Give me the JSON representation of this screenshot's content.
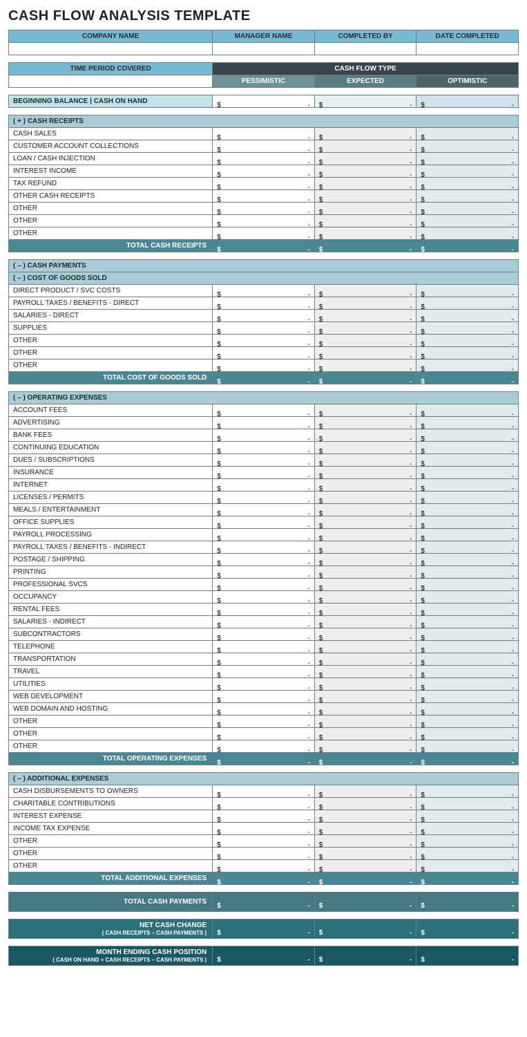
{
  "title": "CASH FLOW ANALYSIS TEMPLATE",
  "colors": {
    "hdr_blue": "#79b9cf",
    "hdr_dark": "#38444c",
    "sub_pess": "#6c9197",
    "sub_exp": "#5b7c82",
    "sub_opt": "#4a666c",
    "sec_hdr": "#a9ccd5",
    "total": "#4b8793",
    "grand1": "#457a83",
    "grand2": "#2e707a",
    "grand3": "#1a5664",
    "c2": "#efefef",
    "c3": "#e2ebee",
    "border": "#6d7e88"
  },
  "top_headers": [
    "COMPANY NAME",
    "MANAGER NAME",
    "COMPLETED BY",
    "DATE COMPLETED"
  ],
  "top_values": [
    "",
    "",
    "",
    ""
  ],
  "time_period_label": "TIME PERIOD COVERED",
  "time_period_value": "",
  "cash_flow_type_label": "CASH FLOW TYPE",
  "scenarios": [
    "PESSIMISTIC",
    "EXPECTED",
    "OPTIMISTIC"
  ],
  "beginning_balance_label": "BEGINNING BALANCE | CASH ON HAND",
  "currency_symbol": "$",
  "dash": "-",
  "sections": [
    {
      "header": "( + )  CASH RECEIPTS",
      "rows": [
        "CASH SALES",
        "CUSTOMER ACCOUNT COLLECTIONS",
        "LOAN / CASH INJECTION",
        "INTEREST INCOME",
        "TAX REFUND",
        "OTHER CASH RECEIPTS",
        "OTHER",
        "OTHER",
        "OTHER"
      ],
      "total_label": "TOTAL CASH RECEIPTS"
    },
    {
      "header": "( – )  CASH PAYMENTS",
      "subheader": "( – )  COST OF GOODS SOLD",
      "rows": [
        "DIRECT PRODUCT / SVC COSTS",
        "PAYROLL TAXES / BENEFITS - DIRECT",
        "SALARIES - DIRECT",
        "SUPPLIES",
        "OTHER",
        "OTHER",
        "OTHER"
      ],
      "total_label": "TOTAL COST OF GOODS SOLD"
    },
    {
      "header": "( – )  OPERATING EXPENSES",
      "rows": [
        "ACCOUNT FEES",
        "ADVERTISING",
        "BANK FEES",
        "CONTINUING EDUCATION",
        "DUES / SUBSCRIPTIONS",
        "INSURANCE",
        "INTERNET",
        "LICENSES / PERMITS",
        "MEALS / ENTERTAINMENT",
        "OFFICE SUPPLIES",
        "PAYROLL PROCESSING",
        "PAYROLL TAXES / BENEFITS - INDIRECT",
        "POSTAGE / SHIPPING",
        "PRINTING",
        "PROFESSIONAL SVCS",
        "OCCUPANCY",
        "RENTAL FEES",
        "SALARIES - INDIRECT",
        "SUBCONTRACTORS",
        "TELEPHONE",
        "TRANSPORTATION",
        "TRAVEL",
        "UTILITIES",
        "WEB DEVELOPMENT",
        "WEB DOMAIN AND HOSTING",
        "OTHER",
        "OTHER",
        "OTHER"
      ],
      "total_label": "TOTAL OPERATING EXPENSES"
    },
    {
      "header": "( – )  ADDITIONAL EXPENSES",
      "rows": [
        "CASH DISBURSEMENTS TO OWNERS",
        "CHARITABLE CONTRIBUTIONS",
        "INTEREST EXPENSE",
        "INCOME TAX EXPENSE",
        "OTHER",
        "OTHER",
        "OTHER"
      ],
      "total_label": "TOTAL ADDITIONAL EXPENSES"
    }
  ],
  "grand_totals": [
    {
      "label": "TOTAL CASH PAYMENTS",
      "sub": "",
      "class": "grand1"
    },
    {
      "label": "NET CASH CHANGE",
      "sub": "( CASH RECEIPTS – CASH PAYMENTS )",
      "class": "grand2"
    },
    {
      "label": "MONTH ENDING CASH POSITION",
      "sub": "( CASH ON HAND + CASH RECEIPTS – CASH PAYMENTS )",
      "class": "grand3"
    }
  ]
}
